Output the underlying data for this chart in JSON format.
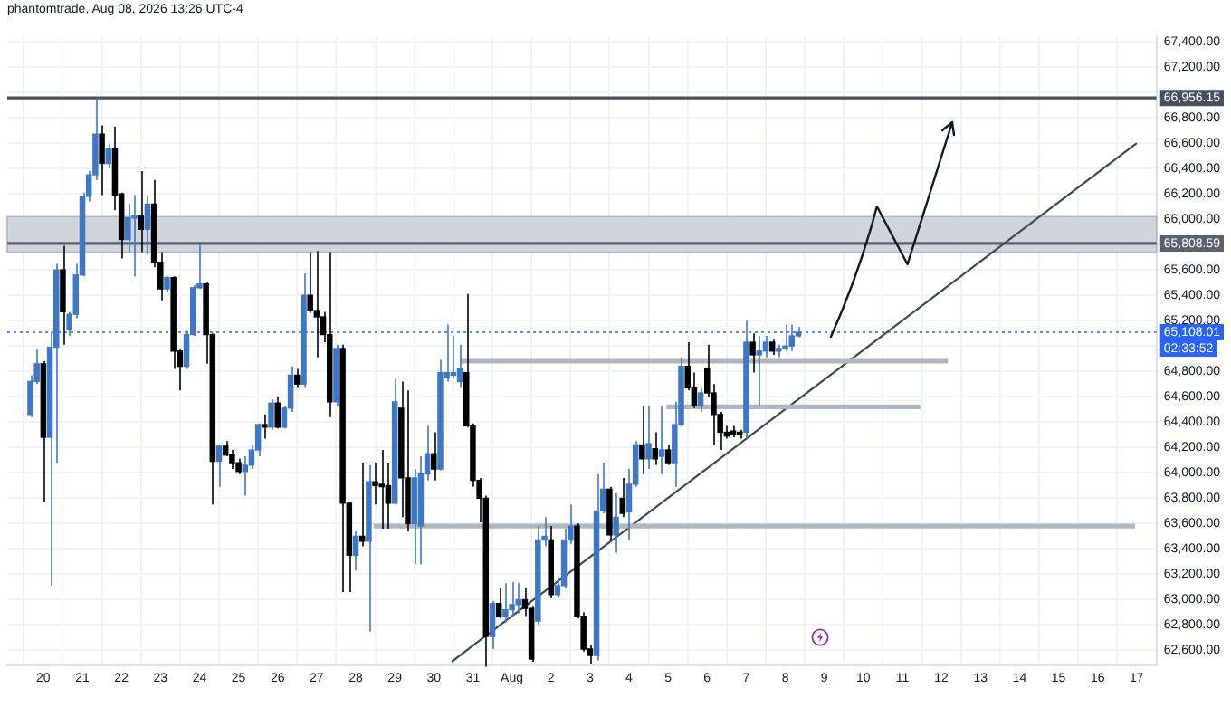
{
  "chart_data": {
    "type": "candlestick",
    "title": "phantomtrade, Aug 08, 2026 13:26 UTC-4",
    "x": [
      "2026-07-19T16:00",
      "2026-07-19T20:00",
      "2026-07-20T00:00",
      "2026-07-20T04:00",
      "2026-07-20T08:00",
      "2026-07-20T12:00",
      "2026-07-20T16:00",
      "2026-07-20T20:00",
      "2026-07-21T00:00",
      "2026-07-21T04:00",
      "2026-07-21T08:00",
      "2026-07-21T12:00",
      "2026-07-21T16:00",
      "2026-07-21T20:00",
      "2026-07-22T00:00",
      "2026-07-22T04:00",
      "2026-07-22T08:00",
      "2026-07-22T12:00",
      "2026-07-22T16:00",
      "2026-07-22T20:00",
      "2026-07-23T00:00",
      "2026-07-23T04:00",
      "2026-07-23T08:00",
      "2026-07-23T12:00",
      "2026-07-23T16:00",
      "2026-07-23T20:00",
      "2026-07-24T00:00",
      "2026-07-24T04:00",
      "2026-07-24T08:00",
      "2026-07-24T12:00",
      "2026-07-24T16:00",
      "2026-07-24T20:00",
      "2026-07-25T00:00",
      "2026-07-25T04:00",
      "2026-07-25T08:00",
      "2026-07-25T12:00",
      "2026-07-25T16:00",
      "2026-07-25T20:00",
      "2026-07-26T00:00",
      "2026-07-26T04:00",
      "2026-07-26T08:00",
      "2026-07-26T12:00",
      "2026-07-26T16:00",
      "2026-07-26T20:00",
      "2026-07-27T00:00",
      "2026-07-27T04:00",
      "2026-07-27T08:00",
      "2026-07-27T12:00",
      "2026-07-27T16:00",
      "2026-07-27T20:00",
      "2026-07-28T00:00",
      "2026-07-28T04:00",
      "2026-07-28T08:00",
      "2026-07-28T12:00",
      "2026-07-28T16:00",
      "2026-07-28T20:00",
      "2026-07-29T00:00",
      "2026-07-29T04:00",
      "2026-07-29T08:00",
      "2026-07-29T12:00",
      "2026-07-29T16:00",
      "2026-07-29T20:00",
      "2026-07-30T00:00",
      "2026-07-30T04:00",
      "2026-07-30T08:00",
      "2026-07-30T12:00",
      "2026-07-30T16:00",
      "2026-07-30T20:00",
      "2026-07-31T00:00",
      "2026-07-31T04:00",
      "2026-07-31T08:00",
      "2026-07-31T12:00",
      "2026-07-31T16:00",
      "2026-07-31T20:00",
      "2026-08-01T00:00",
      "2026-08-01T04:00",
      "2026-08-01T08:00",
      "2026-08-01T12:00",
      "2026-08-01T16:00",
      "2026-08-01T20:00",
      "2026-08-02T00:00",
      "2026-08-02T04:00",
      "2026-08-02T08:00",
      "2026-08-02T12:00",
      "2026-08-02T16:00",
      "2026-08-02T20:00",
      "2026-08-03T00:00",
      "2026-08-03T04:00",
      "2026-08-03T08:00",
      "2026-08-03T12:00",
      "2026-08-03T16:00",
      "2026-08-03T20:00",
      "2026-08-04T00:00",
      "2026-08-04T04:00",
      "2026-08-04T08:00",
      "2026-08-04T12:00",
      "2026-08-04T16:00",
      "2026-08-04T20:00",
      "2026-08-05T00:00",
      "2026-08-05T04:00",
      "2026-08-05T08:00",
      "2026-08-05T12:00",
      "2026-08-05T16:00",
      "2026-08-05T20:00",
      "2026-08-06T00:00",
      "2026-08-06T04:00",
      "2026-08-06T08:00",
      "2026-08-06T12:00",
      "2026-08-06T16:00",
      "2026-08-06T20:00",
      "2026-08-07T00:00",
      "2026-08-07T04:00",
      "2026-08-07T08:00",
      "2026-08-07T12:00",
      "2026-08-07T16:00",
      "2026-08-07T20:00",
      "2026-08-08T00:00",
      "2026-08-08T04:00",
      "2026-08-08T08:00"
    ],
    "ohlc": [
      [
        64460,
        64770,
        64440,
        64720
      ],
      [
        64720,
        64980,
        64700,
        64860
      ],
      [
        64860,
        64880,
        63770,
        64280
      ],
      [
        64280,
        65110,
        63110,
        64990
      ],
      [
        64990,
        65650,
        64080,
        65600
      ],
      [
        65600,
        65790,
        65010,
        65270
      ],
      [
        65130,
        65270,
        65080,
        65250
      ],
      [
        65250,
        65650,
        65220,
        65560
      ],
      [
        65560,
        66210,
        65550,
        66180
      ],
      [
        66180,
        66380,
        66140,
        66350
      ],
      [
        66350,
        66956,
        66310,
        66670
      ],
      [
        66670,
        66740,
        66190,
        66440
      ],
      [
        66440,
        66590,
        66400,
        66560
      ],
      [
        66560,
        66730,
        66070,
        66190
      ],
      [
        66200,
        66210,
        65690,
        65840
      ],
      [
        65840,
        66120,
        65740,
        66010
      ],
      [
        66010,
        66190,
        65550,
        66030
      ],
      [
        66030,
        66380,
        65740,
        65920
      ],
      [
        65920,
        66190,
        65720,
        66120
      ],
      [
        66120,
        66310,
        65620,
        65660
      ],
      [
        65660,
        65740,
        65360,
        65450
      ],
      [
        65450,
        65550,
        65430,
        65540
      ],
      [
        65540,
        65550,
        64820,
        64960
      ],
      [
        64960,
        64980,
        64650,
        64840
      ],
      [
        64840,
        65120,
        64820,
        65090
      ],
      [
        65090,
        65480,
        65080,
        65460
      ],
      [
        65460,
        65810,
        65450,
        65490
      ],
      [
        65490,
        65500,
        64860,
        65090
      ],
      [
        65090,
        65100,
        63750,
        64090
      ],
      [
        64090,
        64220,
        63890,
        64210
      ],
      [
        64210,
        64250,
        64130,
        64140
      ],
      [
        64140,
        64180,
        64030,
        64080
      ],
      [
        64080,
        64110,
        63990,
        64010
      ],
      [
        64010,
        64130,
        63820,
        64060
      ],
      [
        64060,
        64220,
        64030,
        64180
      ],
      [
        64180,
        64390,
        64130,
        64380
      ],
      [
        64380,
        64460,
        64270,
        64360
      ],
      [
        64360,
        64580,
        64340,
        64550
      ],
      [
        64550,
        64600,
        64350,
        64360
      ],
      [
        64360,
        64530,
        64350,
        64510
      ],
      [
        64510,
        64840,
        64480,
        64770
      ],
      [
        64770,
        64820,
        64670,
        64700
      ],
      [
        64700,
        65570,
        64670,
        65400
      ],
      [
        65400,
        65740,
        65260,
        65280
      ],
      [
        65280,
        65750,
        64910,
        65230
      ],
      [
        65230,
        65270,
        65030,
        65090
      ],
      [
        65090,
        65740,
        64440,
        64560
      ],
      [
        64560,
        65010,
        64530,
        64980
      ],
      [
        64980,
        65010,
        63060,
        63760
      ],
      [
        63760,
        63770,
        63060,
        63350
      ],
      [
        63350,
        63540,
        63230,
        63500
      ],
      [
        63500,
        64080,
        63420,
        63460
      ],
      [
        63460,
        64060,
        62750,
        63930
      ],
      [
        63930,
        64080,
        63750,
        63900
      ],
      [
        63910,
        64180,
        63560,
        63890
      ],
      [
        63900,
        64080,
        63560,
        63760
      ],
      [
        63760,
        64740,
        63750,
        64560
      ],
      [
        64510,
        64720,
        63650,
        63960
      ],
      [
        63960,
        64650,
        63540,
        63600
      ],
      [
        63600,
        64030,
        63280,
        63960
      ],
      [
        63580,
        64130,
        63280,
        63990
      ],
      [
        63990,
        64370,
        63940,
        64150
      ],
      [
        64150,
        64320,
        63940,
        64030
      ],
      [
        64030,
        64890,
        64020,
        64790
      ],
      [
        64750,
        65170,
        64720,
        64790
      ],
      [
        64770,
        65080,
        64740,
        64790
      ],
      [
        64720,
        65010,
        64670,
        64820
      ],
      [
        64790,
        65410,
        64360,
        64370
      ],
      [
        64370,
        64390,
        63890,
        63940
      ],
      [
        63940,
        63960,
        63610,
        63800
      ],
      [
        63800,
        63820,
        62470,
        62710
      ],
      [
        62710,
        62990,
        62610,
        62970
      ],
      [
        62970,
        63090,
        62850,
        62870
      ],
      [
        62870,
        63130,
        62820,
        62920
      ],
      [
        62920,
        63140,
        62870,
        62960
      ],
      [
        62960,
        63130,
        62890,
        63000
      ],
      [
        63000,
        63090,
        62870,
        62930
      ],
      [
        62930,
        62950,
        62510,
        62530
      ],
      [
        62830,
        63580,
        62800,
        63470
      ],
      [
        63470,
        63650,
        63420,
        63500
      ],
      [
        63470,
        63580,
        63010,
        63040
      ],
      [
        63040,
        63180,
        63010,
        63110
      ],
      [
        63110,
        63560,
        63090,
        63470
      ],
      [
        63470,
        63750,
        63440,
        63580
      ],
      [
        63580,
        63600,
        62850,
        62870
      ],
      [
        62870,
        62900,
        62590,
        62610
      ],
      [
        62610,
        62640,
        62490,
        62560
      ],
      [
        62560,
        63990,
        62520,
        63700
      ],
      [
        63700,
        64080,
        63680,
        63870
      ],
      [
        63870,
        63890,
        63470,
        63510
      ],
      [
        63510,
        63840,
        63370,
        63650
      ],
      [
        63800,
        63960,
        63650,
        63680
      ],
      [
        63690,
        64030,
        63470,
        63910
      ],
      [
        63910,
        64250,
        63890,
        64220
      ],
      [
        64220,
        64530,
        63990,
        64110
      ],
      [
        64110,
        64530,
        64030,
        64230
      ],
      [
        64190,
        64320,
        64060,
        64110
      ],
      [
        64130,
        64530,
        63990,
        64180
      ],
      [
        64180,
        64220,
        64060,
        64080
      ],
      [
        64080,
        64560,
        63890,
        64380
      ],
      [
        64380,
        64910,
        64360,
        64840
      ],
      [
        64840,
        65030,
        64650,
        64670
      ],
      [
        64670,
        64790,
        64510,
        64530
      ],
      [
        64530,
        64670,
        64480,
        64630
      ],
      [
        64820,
        65010,
        64600,
        64630
      ],
      [
        64630,
        64700,
        64220,
        64460
      ],
      [
        64460,
        64480,
        64180,
        64320
      ],
      [
        64320,
        64370,
        64270,
        64290
      ],
      [
        64330,
        64370,
        64280,
        64300
      ],
      [
        64320,
        64340,
        64270,
        64300
      ],
      [
        64320,
        65200,
        64270,
        65030
      ],
      [
        65030,
        65100,
        64790,
        64930
      ],
      [
        64930,
        65080,
        64530,
        64960
      ],
      [
        64960,
        65080,
        64910,
        65030
      ],
      [
        65030,
        65050,
        64930,
        64960
      ],
      [
        64960,
        65010,
        64910,
        64980
      ],
      [
        64980,
        65170,
        64960,
        65000
      ],
      [
        65000,
        65170,
        64960,
        65080
      ],
      [
        65080,
        65150,
        65070,
        65108.01
      ]
    ],
    "colors": [
      "#3d78c7",
      "#3d78c7",
      "#000000",
      "#3d78c7",
      "#3d78c7",
      "#000000",
      "#3d78c7",
      "#3d78c7",
      "#3d78c7",
      "#3d78c7",
      "#3d78c7",
      "#000000",
      "#3d78c7",
      "#000000",
      "#000000",
      "#3d78c7",
      "#3d78c7",
      "#000000",
      "#3d78c7",
      "#000000",
      "#000000",
      "#3d78c7",
      "#000000",
      "#000000",
      "#3d78c7",
      "#3d78c7",
      "#3d78c7",
      "#000000",
      "#000000",
      "#3d78c7",
      "#000000",
      "#000000",
      "#000000",
      "#3d78c7",
      "#3d78c7",
      "#3d78c7",
      "#000000",
      "#3d78c7",
      "#000000",
      "#3d78c7",
      "#3d78c7",
      "#000000",
      "#3d78c7",
      "#000000",
      "#000000",
      "#000000",
      "#000000",
      "#3d78c7",
      "#000000",
      "#000000",
      "#3d78c7",
      "#000000",
      "#3d78c7",
      "#000000",
      "#000000",
      "#000000",
      "#3d78c7",
      "#000000",
      "#000000",
      "#3d78c7",
      "#3d78c7",
      "#3d78c7",
      "#000000",
      "#3d78c7",
      "#3d78c7",
      "#3d78c7",
      "#3d78c7",
      "#000000",
      "#000000",
      "#000000",
      "#000000",
      "#3d78c7",
      "#000000",
      "#3d78c7",
      "#3d78c7",
      "#3d78c7",
      "#000000",
      "#000000",
      "#3d78c7",
      "#3d78c7",
      "#000000",
      "#3d78c7",
      "#3d78c7",
      "#3d78c7",
      "#000000",
      "#000000",
      "#000000",
      "#3d78c7",
      "#3d78c7",
      "#000000",
      "#3d78c7",
      "#000000",
      "#3d78c7",
      "#3d78c7",
      "#000000",
      "#3d78c7",
      "#000000",
      "#3d78c7",
      "#000000",
      "#3d78c7",
      "#3d78c7",
      "#000000",
      "#000000",
      "#3d78c7",
      "#000000",
      "#000000",
      "#000000",
      "#000000",
      "#000000",
      "#000000",
      "#3d78c7",
      "#000000",
      "#3d78c7",
      "#3d78c7",
      "#000000",
      "#3d78c7",
      "#3d78c7",
      "#3d78c7",
      "#3d78c7"
    ],
    "series": [
      {
        "type": "line",
        "color": "#b2b5be",
        "x": [
          "2026-07-30T16:00",
          "2026-08-12T04:00"
        ],
        "values": [
          64880,
          64880
        ]
      },
      {
        "type": "line",
        "color": "#b2b5be",
        "x": [
          "2026-08-04T23:00",
          "2026-08-11T11:00"
        ],
        "values": [
          64520,
          64520
        ]
      },
      {
        "type": "line",
        "color": "#b2b5be",
        "x": [
          "2026-07-28T11:00",
          "2026-08-16T23:00"
        ],
        "values": [
          63580,
          63580
        ]
      },
      {
        "type": "line",
        "color": "#434651",
        "x": [
          "2026-07-30T11:00",
          "2026-08-17"
        ],
        "values": [
          62510,
          66600
        ]
      }
    ],
    "bands": [
      {
        "axis": "y",
        "from": 65740,
        "to": 66020,
        "color": "#d1d4dc"
      }
    ],
    "ref_lines": [
      {
        "axis": "y",
        "value": 66956.15,
        "label": "66,956.15",
        "color": "#4a4e5e"
      },
      {
        "axis": "y",
        "value": 65808.59,
        "label": "65,808.59",
        "color": "#5d606b"
      },
      {
        "axis": "y",
        "value": 65108.01,
        "label": "65,108.01",
        "color": "#2962ff",
        "line_style": "dotted"
      }
    ],
    "annotations": [
      "02:33:52"
    ],
    "xlim": [
      "2026-07-19T14:00",
      "2026-08-17"
    ],
    "xticks": [
      {
        "value": "2026-07-20",
        "label": "20"
      },
      {
        "value": "2026-07-21",
        "label": "21"
      },
      {
        "value": "2026-07-22",
        "label": "22"
      },
      {
        "value": "2026-07-23",
        "label": "23"
      },
      {
        "value": "2026-07-24",
        "label": "24"
      },
      {
        "value": "2026-07-25",
        "label": "25"
      },
      {
        "value": "2026-07-26",
        "label": "26"
      },
      {
        "value": "2026-07-27",
        "label": "27"
      },
      {
        "value": "2026-07-28",
        "label": "28"
      },
      {
        "value": "2026-07-29",
        "label": "29"
      },
      {
        "value": "2026-07-30",
        "label": "30"
      },
      {
        "value": "2026-07-31",
        "label": "31"
      },
      {
        "value": "2026-08-01",
        "label": "Aug"
      },
      {
        "value": "2026-08-02",
        "label": "2"
      },
      {
        "value": "2026-08-03",
        "label": "3"
      },
      {
        "value": "2026-08-04",
        "label": "4"
      },
      {
        "value": "2026-08-05",
        "label": "5"
      },
      {
        "value": "2026-08-06",
        "label": "6"
      },
      {
        "value": "2026-08-07",
        "label": "7"
      },
      {
        "value": "2026-08-08",
        "label": "8"
      },
      {
        "value": "2026-08-09",
        "label": "9"
      },
      {
        "value": "2026-08-10",
        "label": "10"
      },
      {
        "value": "2026-08-11",
        "label": "11"
      },
      {
        "value": "2026-08-12",
        "label": "12"
      },
      {
        "value": "2026-08-13",
        "label": "13"
      },
      {
        "value": "2026-08-14",
        "label": "14"
      },
      {
        "value": "2026-08-15",
        "label": "15"
      },
      {
        "value": "2026-08-16",
        "label": "16"
      },
      {
        "value": "2026-08-17",
        "label": "17"
      }
    ],
    "ylim": [
      62480,
      67440
    ],
    "yticks": [
      {
        "value": 62600,
        "label": "62,600.00"
      },
      {
        "value": 62800,
        "label": "62,800.00"
      },
      {
        "value": 63000,
        "label": "63,000.00"
      },
      {
        "value": 63200,
        "label": "63,200.00"
      },
      {
        "value": 63400,
        "label": "63,400.00"
      },
      {
        "value": 63600,
        "label": "63,600.00"
      },
      {
        "value": 63800,
        "label": "63,800.00"
      },
      {
        "value": 64000,
        "label": "64,000.00"
      },
      {
        "value": 64200,
        "label": "64,200.00"
      },
      {
        "value": 64400,
        "label": "64,400.00"
      },
      {
        "value": 64600,
        "label": "64,600.00"
      },
      {
        "value": 64800,
        "label": "64,800.00"
      },
      {
        "value": 65000,
        "label": null
      },
      {
        "value": 65200,
        "label": "65,200.00"
      },
      {
        "value": 65400,
        "label": "65,400.00"
      },
      {
        "value": 65600,
        "label": "65,600.00"
      },
      {
        "value": 65800,
        "label": null
      },
      {
        "value": 66000,
        "label": "66,000.00"
      },
      {
        "value": 66200,
        "label": "66,200.00"
      },
      {
        "value": 66400,
        "label": "66,400.00"
      },
      {
        "value": 66600,
        "label": "66,600.00"
      },
      {
        "value": 66800,
        "label": "66,800.00"
      },
      {
        "value": 67000,
        "label": null
      },
      {
        "value": 67200,
        "label": "67,200.00"
      },
      {
        "value": 67400,
        "label": "67,400.00"
      }
    ],
    "grid": true
  }
}
